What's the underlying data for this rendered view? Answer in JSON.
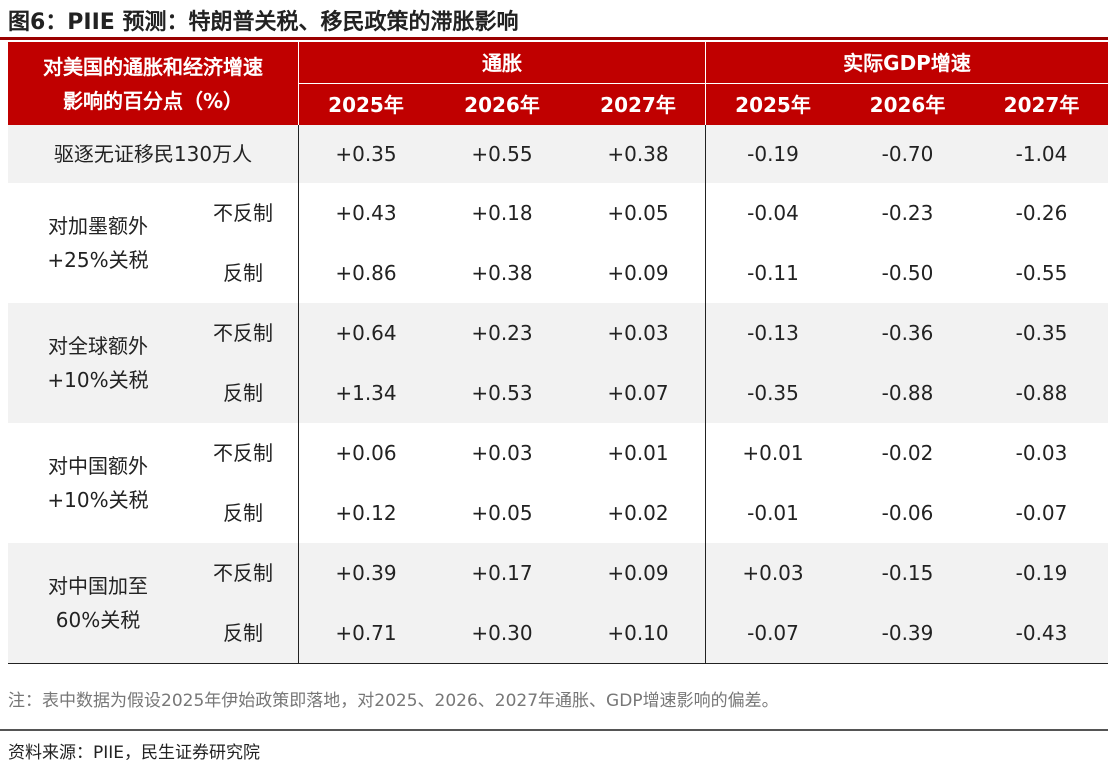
{
  "title": "图6：PIIE 预测：特朗普关税、移民政策的滞胀影响",
  "table": {
    "header": {
      "corner": [
        "对美国的通胀和经济增速",
        "影响的百分点（%）"
      ],
      "groups": [
        "通胀",
        "实际GDP增速"
      ],
      "years": [
        "2025年",
        "2026年",
        "2027年",
        "2025年",
        "2026年",
        "2027年"
      ]
    },
    "rows": [
      {
        "label": [
          "驱逐无证移民130万人"
        ],
        "subrows": [
          {
            "values": [
              "+0.35",
              "+0.55",
              "+0.38",
              "-0.19",
              "-0.70",
              "-1.04"
            ]
          }
        ]
      },
      {
        "label": [
          "对加墨额外",
          "+25%关税"
        ],
        "subrows": [
          {
            "label": "不反制",
            "values": [
              "+0.43",
              "+0.18",
              "+0.05",
              "-0.04",
              "-0.23",
              "-0.26"
            ]
          },
          {
            "label": "反制",
            "values": [
              "+0.86",
              "+0.38",
              "+0.09",
              "-0.11",
              "-0.50",
              "-0.55"
            ]
          }
        ]
      },
      {
        "label": [
          "对全球额外",
          "+10%关税"
        ],
        "subrows": [
          {
            "label": "不反制",
            "values": [
              "+0.64",
              "+0.23",
              "+0.03",
              "-0.13",
              "-0.36",
              "-0.35"
            ]
          },
          {
            "label": "反制",
            "values": [
              "+1.34",
              "+0.53",
              "+0.07",
              "-0.35",
              "-0.88",
              "-0.88"
            ]
          }
        ]
      },
      {
        "label": [
          "对中国额外",
          "+10%关税"
        ],
        "subrows": [
          {
            "label": "不反制",
            "values": [
              "+0.06",
              "+0.03",
              "+0.01",
              "+0.01",
              "-0.02",
              "-0.03"
            ]
          },
          {
            "label": "反制",
            "values": [
              "+0.12",
              "+0.05",
              "+0.02",
              "-0.01",
              "-0.06",
              "-0.07"
            ]
          }
        ]
      },
      {
        "label": [
          "对中国加至",
          "60%关税"
        ],
        "subrows": [
          {
            "label": "不反制",
            "values": [
              "+0.39",
              "+0.17",
              "+0.09",
              "+0.03",
              "-0.15",
              "-0.19"
            ]
          },
          {
            "label": "反制",
            "values": [
              "+0.71",
              "+0.30",
              "+0.10",
              "-0.07",
              "-0.39",
              "-0.43"
            ]
          }
        ]
      }
    ]
  },
  "note": "注：表中数据为假设2025年伊始政策即落地，对2025、2026、2027年通胀、GDP增速影响的偏差。",
  "source": "资料来源：PIIE，民生证券研究院"
}
